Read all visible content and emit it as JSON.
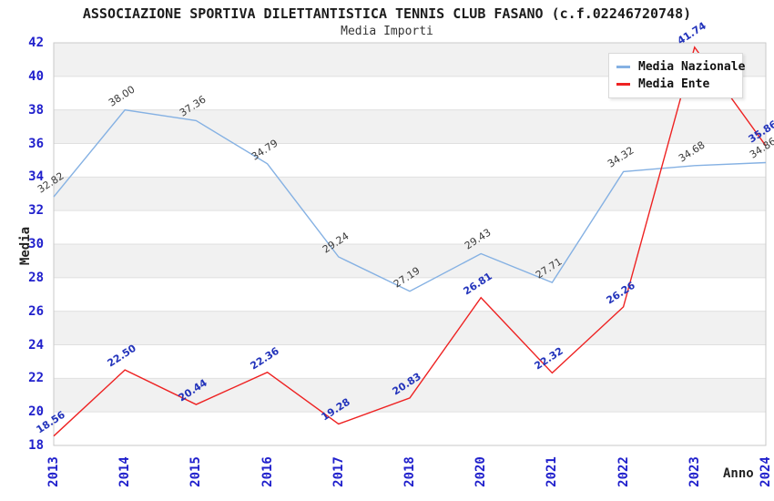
{
  "header": {
    "title": "ASSOCIAZIONE SPORTIVA DILETTANTISTICA TENNIS CLUB FASANO (c.f.02246720748)",
    "subtitle": "Media Importi"
  },
  "chart_data": {
    "type": "line",
    "x": [
      "2013",
      "2014",
      "2015",
      "2016",
      "2017",
      "2018",
      "2020",
      "2021",
      "2022",
      "2023",
      "2024"
    ],
    "series": [
      {
        "name": "Media Nazionale",
        "color": "#85b1e3",
        "label_color": "#3a3a3a",
        "values": [
          32.82,
          38.0,
          37.36,
          34.79,
          29.24,
          27.19,
          29.43,
          27.71,
          34.32,
          34.68,
          34.86
        ]
      },
      {
        "name": "Media Ente",
        "color": "#ee2222",
        "label_color": "#2233bb",
        "values": [
          18.56,
          22.5,
          20.44,
          22.36,
          19.28,
          20.83,
          26.81,
          22.32,
          26.26,
          41.74,
          35.86
        ]
      }
    ],
    "xlabel": "Anno",
    "ylabel": "Media",
    "ylim": [
      18,
      42
    ],
    "ytick_step": 2,
    "tick_color": "#2020cc",
    "band_colors": [
      "#f1f1f1",
      "#ffffff"
    ],
    "gridline_color": "#e0e0e0",
    "border_color": "#c9c9c9",
    "legend_position": "top-right",
    "grid": "horizontal-bands",
    "value_labels": "two-decimals-rotated"
  }
}
